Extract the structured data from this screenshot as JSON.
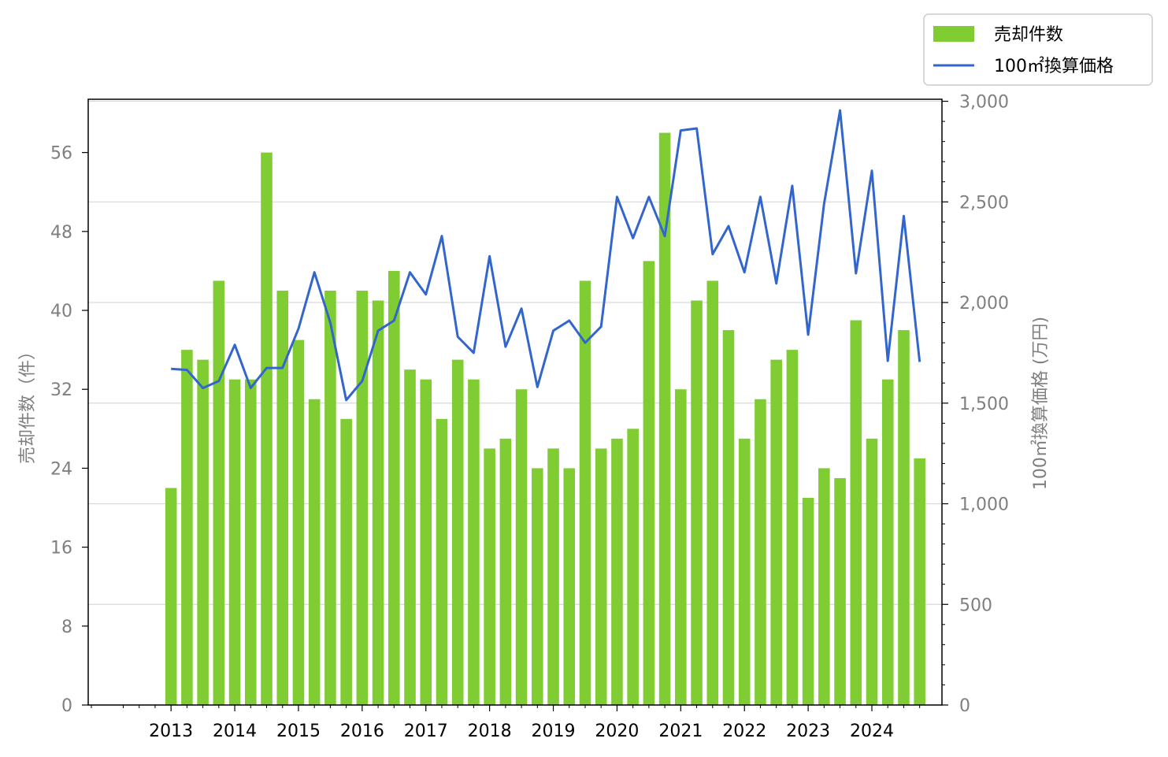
{
  "chart_data": {
    "type": "bar",
    "x": [
      2013.0,
      2013.25,
      2013.5,
      2013.75,
      2014.0,
      2014.25,
      2014.5,
      2014.75,
      2015.0,
      2015.25,
      2015.5,
      2015.75,
      2016.0,
      2016.25,
      2016.5,
      2016.75,
      2017.0,
      2017.25,
      2017.5,
      2017.75,
      2018.0,
      2018.25,
      2018.5,
      2018.75,
      2019.0,
      2019.25,
      2019.5,
      2019.75,
      2020.0,
      2020.25,
      2020.5,
      2020.75,
      2021.0,
      2021.25,
      2021.5,
      2021.75,
      2022.0,
      2022.25,
      2022.5,
      2022.75,
      2023.0,
      2023.25,
      2023.5,
      2023.75,
      2024.0,
      2024.25,
      2024.5,
      2024.75
    ],
    "series": [
      {
        "name": "売却件数",
        "type": "bar",
        "axis": "left",
        "color": "#7fcc33",
        "values": [
          22,
          36,
          35,
          43,
          33,
          33,
          56,
          42,
          37,
          31,
          42,
          29,
          42,
          41,
          44,
          34,
          33,
          29,
          35,
          33,
          26,
          27,
          32,
          24,
          26,
          24,
          43,
          26,
          27,
          28,
          45,
          58,
          32,
          41,
          43,
          38,
          27,
          31,
          35,
          36,
          21,
          24,
          23,
          39,
          27,
          33,
          38,
          25
        ]
      },
      {
        "name": "100㎡換算価格",
        "type": "line",
        "axis": "right",
        "color": "#3366cc",
        "values": [
          1670,
          1665,
          1575,
          1610,
          1790,
          1575,
          1675,
          1675,
          1870,
          2150,
          1900,
          1515,
          1610,
          1860,
          1910,
          2150,
          2040,
          2330,
          1830,
          1750,
          2230,
          1780,
          1970,
          1580,
          1860,
          1910,
          1800,
          1880,
          2525,
          2320,
          2525,
          2330,
          2855,
          2865,
          2240,
          2380,
          2150,
          2525,
          2095,
          2580,
          1840,
          2490,
          2955,
          2145,
          2655,
          1710,
          2430,
          1705
        ]
      }
    ],
    "x_ticks": [
      "2013",
      "2014",
      "2015",
      "2016",
      "2017",
      "2018",
      "2019",
      "2020",
      "2021",
      "2022",
      "2023",
      "2024"
    ],
    "y_left_ticks": [
      "0",
      "8",
      "16",
      "24",
      "32",
      "40",
      "48",
      "56"
    ],
    "y_right_ticks": [
      "0",
      "500",
      "1,000",
      "1,500",
      "2,000",
      "2,500",
      "3,000"
    ],
    "ylabel_left": "売却件数（件）",
    "ylabel_right": "100㎡換算価格 (万円)",
    "ylim_left": [
      0,
      61.4
    ],
    "ylim_right": [
      0,
      3010
    ],
    "xlim": [
      2011.7,
      2025.1
    ],
    "grid": "horizontal, right axis",
    "legend_position": "top-right outside"
  }
}
